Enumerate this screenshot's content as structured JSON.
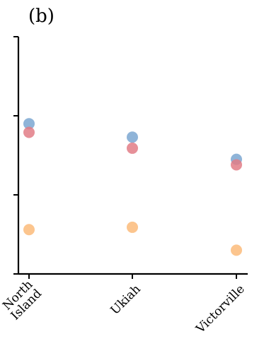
{
  "chart_data": {
    "type": "scatter",
    "title": "(b)",
    "xlabel": "",
    "ylabel": "",
    "categories": [
      "North\nIsland",
      "Ukiah",
      "Victorville"
    ],
    "ylim": [
      0,
      3
    ],
    "y_ticks": [
      0,
      1,
      2,
      3
    ],
    "y_tick_labels_visible": false,
    "grid": false,
    "legend": "none",
    "series": [
      {
        "color": "#7ba7d1",
        "values": [
          1.9,
          1.73,
          1.45
        ]
      },
      {
        "color": "#e27d86",
        "values": [
          1.79,
          1.59,
          1.38
        ]
      },
      {
        "color": "#fbbb7a",
        "values": [
          0.56,
          0.59,
          0.3
        ]
      }
    ]
  }
}
